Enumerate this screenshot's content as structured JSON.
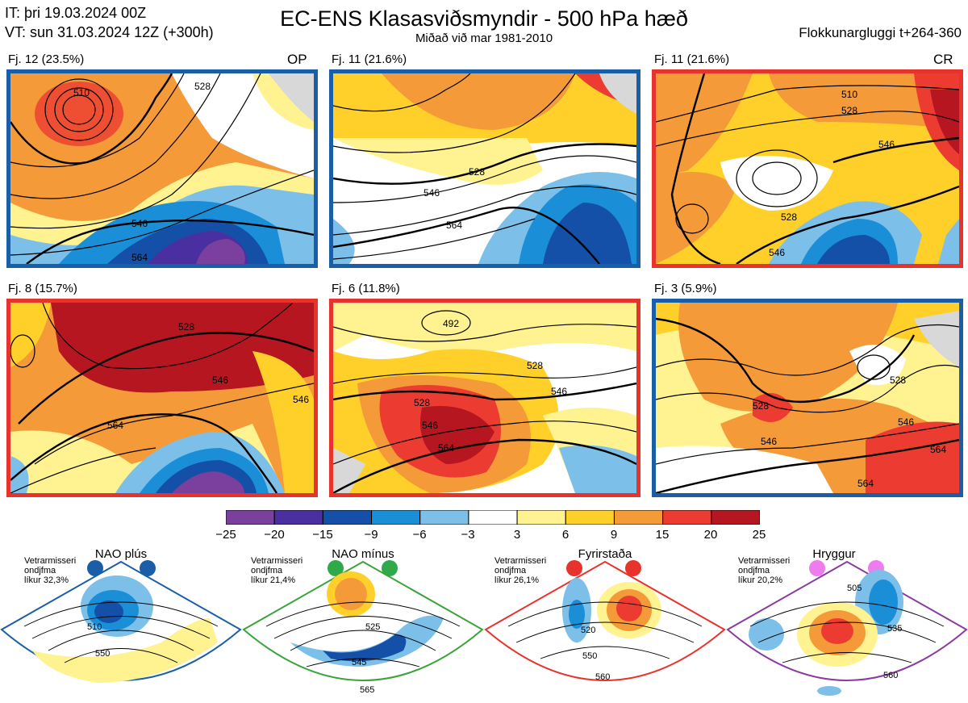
{
  "header": {
    "it_line": "IT: þri 19.03.2024 00Z",
    "vt_line": "VT: sun 31.03.2024 12Z  (+300h)",
    "title": "EC-ENS Klasasviðsmyndir - 500 hPa hæð",
    "subtitle": "Miðað við mar 1981-2010",
    "window": "Flokkunargluggi t+264-360"
  },
  "colors": {
    "anomaly_scale": [
      "#7b3f9e",
      "#4a2fa0",
      "#1550a8",
      "#1a8fd8",
      "#7cc0ea",
      "#ffffff",
      "#fff291",
      "#ffd02a",
      "#f59a38",
      "#ec3c31",
      "#b51620"
    ],
    "border_blue": "#1a5ea8",
    "border_red": "#e8322c",
    "border_green": "#3aa33a",
    "border_purple": "#8b3aa0",
    "coast": "#8b5a2b"
  },
  "panels": [
    {
      "label": "Fj. 12 (23.5%)",
      "tag": "OP",
      "border": "blue",
      "contours": [
        "510",
        "528",
        "546",
        "564"
      ]
    },
    {
      "label": "Fj. 11 (21.6%)",
      "tag": "",
      "border": "blue",
      "contours": [
        "528",
        "546",
        "564"
      ]
    },
    {
      "label": "Fj. 11 (21.6%)",
      "tag": "CR",
      "border": "red",
      "contours": [
        "510",
        "528",
        "546",
        "528",
        "546"
      ]
    },
    {
      "label": "Fj. 8 (15.7%)",
      "tag": "",
      "border": "red",
      "contours": [
        "528",
        "546",
        "564",
        "546"
      ]
    },
    {
      "label": "Fj. 6 (11.8%)",
      "tag": "",
      "border": "red",
      "contours": [
        "492",
        "528",
        "546",
        "564",
        "546",
        "528"
      ]
    },
    {
      "label": "Fj. 3 (5.9%)",
      "tag": "",
      "border": "blue",
      "contours": [
        "528",
        "546",
        "564",
        "546",
        "528",
        "564"
      ]
    }
  ],
  "colorbar": {
    "ticks": [
      "−25",
      "−20",
      "−15",
      "−9",
      "−6",
      "−3",
      "3",
      "6",
      "9",
      "15",
      "20",
      "25"
    ]
  },
  "regimes": [
    {
      "title": "NAO plús",
      "info": [
        "Vetrarmisseri",
        "ondjfma",
        "líkur 32,3%"
      ],
      "dot": "#1a5ea8",
      "border": "#1a5ea8",
      "contours": [
        "510",
        "550"
      ]
    },
    {
      "title": "NAO mínus",
      "info": [
        "Vetrarmisseri",
        "ondjfma",
        "líkur 21,4%"
      ],
      "dot": "#2eaa4a",
      "border": "#3aa33a",
      "contours": [
        "525",
        "545",
        "565"
      ]
    },
    {
      "title": "Fyrirstaða",
      "info": [
        "Vetrarmisseri",
        "ondjfma",
        "líkur 26,1%"
      ],
      "dot": "#e8322c",
      "border": "#e8322c",
      "contours": [
        "520",
        "550",
        "560"
      ]
    },
    {
      "title": "Hryggur",
      "info": [
        "Vetrarmisseri",
        "ondjfma",
        "líkur 20,2%"
      ],
      "dot": "#ee7cee",
      "border": "#8b3aa0",
      "contours": [
        "505",
        "535",
        "560"
      ]
    }
  ]
}
